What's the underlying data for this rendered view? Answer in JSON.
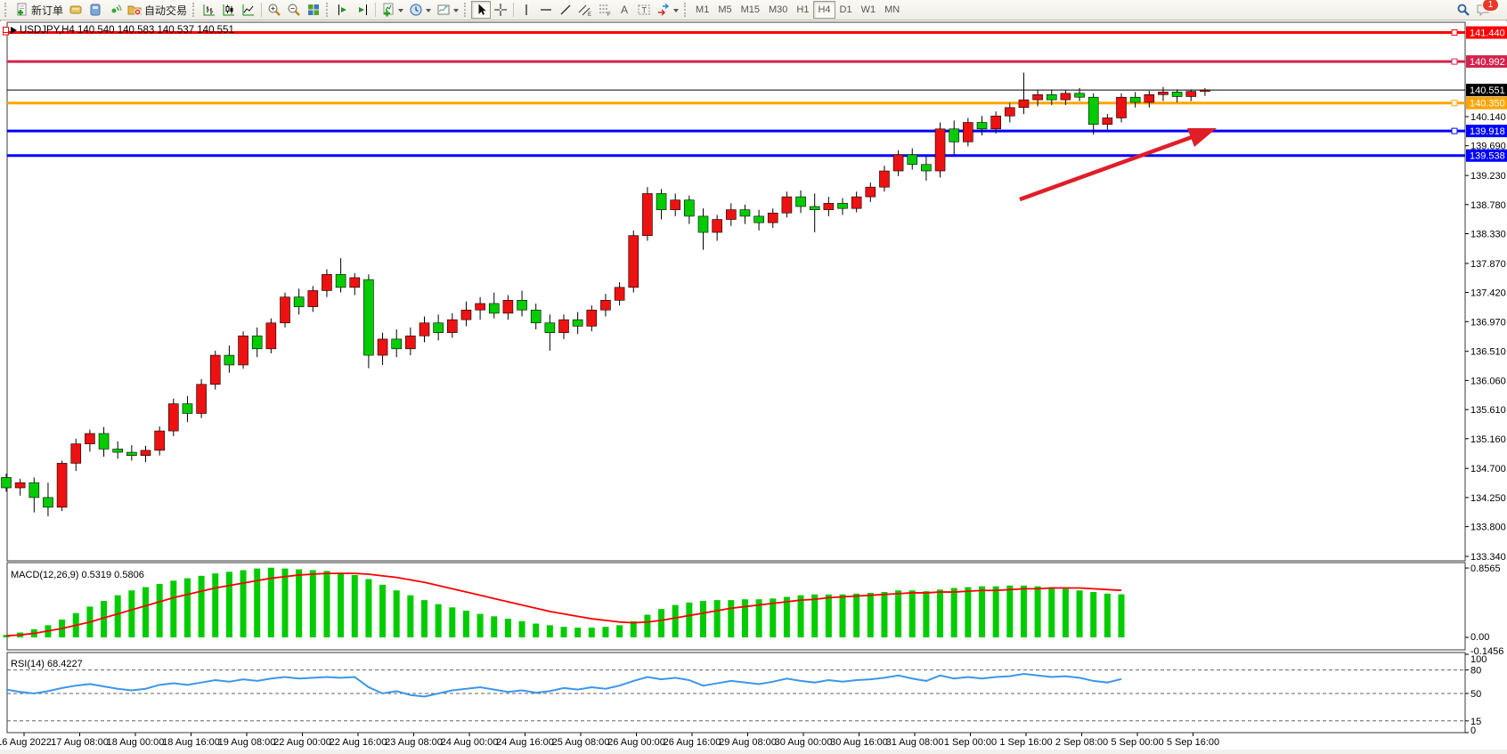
{
  "toolbar": {
    "new_order_label": "新订单",
    "auto_trading_label": "自动交易",
    "timeframes": [
      "M1",
      "M5",
      "M15",
      "M30",
      "H1",
      "H4",
      "D1",
      "W1",
      "MN"
    ],
    "active_timeframe": "H4",
    "notification_badge": "1",
    "icon_glyphs": {
      "text_tool": "A",
      "label_tool": "T",
      "channel_suffix": "E",
      "fibo_suffix": "F"
    },
    "icons": [
      "new-order",
      "profiles",
      "market-watch",
      "navigator",
      "auto-trading",
      "bar-chart",
      "candlestick-chart",
      "line-chart",
      "zoom-in",
      "zoom-out",
      "tile-windows",
      "auto-scroll",
      "chart-shift",
      "indicators",
      "periods",
      "templates",
      "cursor",
      "crosshair",
      "vertical-line",
      "horizontal-line",
      "trendline",
      "equidistant-channel",
      "fibonacci",
      "text",
      "text-label",
      "arrows",
      "search",
      "chat"
    ]
  },
  "chart": {
    "title": "USDJPY,H4 140.540 140.583 140.537 140.551",
    "symbol": "USDJPY",
    "period": "H4",
    "open": "140.540",
    "high": "140.583",
    "low": "140.537",
    "close": "140.551"
  },
  "price_axis": {
    "ticks": [
      "140.140",
      "139.690",
      "139.230",
      "138.780",
      "138.330",
      "137.870",
      "137.420",
      "136.970",
      "136.510",
      "136.060",
      "135.610",
      "135.160",
      "134.700",
      "134.250",
      "133.800",
      "133.340"
    ],
    "tick_values": [
      140.14,
      139.69,
      139.23,
      138.78,
      138.33,
      137.87,
      137.42,
      136.97,
      136.51,
      136.06,
      135.61,
      135.16,
      134.7,
      134.25,
      133.8,
      133.34
    ],
    "levels": [
      {
        "price": "141.440",
        "value": 141.44,
        "color": "#FF0000",
        "thick": true,
        "handle": true,
        "left_marker": true
      },
      {
        "price": "140.992",
        "value": 140.992,
        "color": "#D2234F",
        "thick": true,
        "handle": true,
        "left_marker": false
      },
      {
        "price": "140.551",
        "value": 140.551,
        "color": "#000000",
        "thick": false,
        "handle": false,
        "left_marker": false
      },
      {
        "price": "140.350",
        "value": 140.35,
        "color": "#FFA500",
        "thick": true,
        "handle": true,
        "left_marker": false
      },
      {
        "price": "139.918",
        "value": 139.918,
        "color": "#0000FF",
        "thick": true,
        "handle": true,
        "left_marker": false
      },
      {
        "price": "139.538",
        "value": 139.538,
        "color": "#0000FF",
        "thick": true,
        "handle": false,
        "left_marker": false
      }
    ]
  },
  "chart_data": {
    "type": "candlestick",
    "symbol": "USDJPY",
    "timeframe": "H4",
    "up_color": "#EE1111",
    "down_color": "#00CC00",
    "wick_color": "#000000",
    "price_range": [
      133.27,
      141.53
    ],
    "x_labels": [
      "16 Aug 2022",
      "17 Aug 08:00",
      "18 Aug 00:00",
      "18 Aug 16:00",
      "19 Aug 08:00",
      "22 Aug 00:00",
      "22 Aug 16:00",
      "23 Aug 08:00",
      "24 Aug 00:00",
      "24 Aug 16:00",
      "25 Aug 08:00",
      "26 Aug 00:00",
      "26 Aug 16:00",
      "29 Aug 08:00",
      "30 Aug 00:00",
      "30 Aug 16:00",
      "31 Aug 08:00",
      "1 Sep 00:00",
      "1 Sep 16:00",
      "2 Sep 08:00",
      "5 Sep 00:00",
      "5 Sep 16:00"
    ],
    "candles": [
      [
        134.56,
        134.62,
        134.34,
        134.4
      ],
      [
        134.4,
        134.54,
        134.28,
        134.48
      ],
      [
        134.48,
        134.56,
        134.02,
        134.25
      ],
      [
        134.25,
        134.48,
        133.96,
        134.1
      ],
      [
        134.1,
        134.82,
        134.04,
        134.78
      ],
      [
        134.78,
        135.16,
        134.66,
        135.08
      ],
      [
        135.08,
        135.3,
        134.96,
        135.24
      ],
      [
        135.24,
        135.34,
        134.88,
        135.0
      ],
      [
        135.0,
        135.12,
        134.85,
        134.95
      ],
      [
        134.95,
        135.06,
        134.82,
        134.9
      ],
      [
        134.9,
        135.05,
        134.8,
        134.98
      ],
      [
        134.98,
        135.35,
        134.9,
        135.28
      ],
      [
        135.28,
        135.78,
        135.2,
        135.7
      ],
      [
        135.7,
        135.82,
        135.42,
        135.55
      ],
      [
        135.55,
        136.08,
        135.48,
        136.0
      ],
      [
        136.0,
        136.52,
        135.92,
        136.45
      ],
      [
        136.45,
        136.6,
        136.18,
        136.3
      ],
      [
        136.3,
        136.82,
        136.24,
        136.75
      ],
      [
        136.75,
        136.88,
        136.42,
        136.55
      ],
      [
        136.55,
        137.02,
        136.48,
        136.95
      ],
      [
        136.95,
        137.42,
        136.88,
        137.35
      ],
      [
        137.35,
        137.48,
        137.08,
        137.2
      ],
      [
        137.2,
        137.52,
        137.12,
        137.45
      ],
      [
        137.45,
        137.78,
        137.35,
        137.7
      ],
      [
        137.7,
        137.95,
        137.42,
        137.5
      ],
      [
        137.5,
        137.72,
        137.38,
        137.65
      ],
      [
        137.62,
        137.7,
        136.25,
        136.45
      ],
      [
        136.45,
        136.8,
        136.3,
        136.7
      ],
      [
        136.7,
        136.85,
        136.42,
        136.55
      ],
      [
        136.55,
        136.88,
        136.45,
        136.75
      ],
      [
        136.75,
        137.05,
        136.65,
        136.95
      ],
      [
        136.95,
        137.08,
        136.68,
        136.8
      ],
      [
        136.8,
        137.1,
        136.72,
        137.0
      ],
      [
        137.0,
        137.28,
        136.9,
        137.15
      ],
      [
        137.15,
        137.35,
        137.0,
        137.25
      ],
      [
        137.25,
        137.42,
        137.02,
        137.1
      ],
      [
        137.1,
        137.38,
        137.0,
        137.3
      ],
      [
        137.3,
        137.45,
        137.05,
        137.15
      ],
      [
        137.15,
        137.25,
        136.85,
        136.95
      ],
      [
        136.95,
        137.08,
        136.52,
        136.8
      ],
      [
        136.8,
        137.08,
        136.7,
        137.0
      ],
      [
        137.0,
        137.12,
        136.78,
        136.9
      ],
      [
        136.9,
        137.22,
        136.82,
        137.15
      ],
      [
        137.15,
        137.4,
        137.05,
        137.3
      ],
      [
        137.3,
        137.58,
        137.22,
        137.5
      ],
      [
        137.5,
        138.38,
        137.42,
        138.3
      ],
      [
        138.3,
        139.05,
        138.22,
        138.95
      ],
      [
        138.95,
        139.02,
        138.55,
        138.7
      ],
      [
        138.7,
        138.95,
        138.6,
        138.85
      ],
      [
        138.85,
        138.92,
        138.48,
        138.6
      ],
      [
        138.6,
        138.72,
        138.08,
        138.35
      ],
      [
        138.35,
        138.62,
        138.22,
        138.55
      ],
      [
        138.55,
        138.8,
        138.45,
        138.7
      ],
      [
        138.7,
        138.78,
        138.48,
        138.6
      ],
      [
        138.6,
        138.7,
        138.38,
        138.5
      ],
      [
        138.5,
        138.72,
        138.42,
        138.65
      ],
      [
        138.65,
        138.98,
        138.58,
        138.9
      ],
      [
        138.9,
        139.0,
        138.65,
        138.75
      ],
      [
        138.75,
        138.95,
        138.35,
        138.7
      ],
      [
        138.7,
        138.9,
        138.6,
        138.8
      ],
      [
        138.8,
        138.88,
        138.62,
        138.72
      ],
      [
        138.72,
        138.98,
        138.66,
        138.9
      ],
      [
        138.9,
        139.12,
        138.82,
        139.05
      ],
      [
        139.05,
        139.38,
        138.98,
        139.3
      ],
      [
        139.3,
        139.62,
        139.22,
        139.55
      ],
      [
        139.55,
        139.65,
        139.32,
        139.4
      ],
      [
        139.4,
        139.52,
        139.15,
        139.3
      ],
      [
        139.3,
        140.05,
        139.2,
        139.95
      ],
      [
        139.95,
        140.08,
        139.55,
        139.75
      ],
      [
        139.75,
        140.12,
        139.68,
        140.05
      ],
      [
        140.05,
        140.15,
        139.85,
        139.95
      ],
      [
        139.95,
        140.22,
        139.88,
        140.15
      ],
      [
        140.15,
        140.35,
        140.05,
        140.28
      ],
      [
        140.28,
        140.82,
        140.18,
        140.4
      ],
      [
        140.4,
        140.55,
        140.3,
        140.48
      ],
      [
        140.48,
        140.56,
        140.32,
        140.4
      ],
      [
        140.4,
        140.55,
        140.32,
        140.5
      ],
      [
        140.5,
        140.58,
        140.38,
        140.44
      ],
      [
        140.44,
        140.5,
        139.86,
        140.02
      ],
      [
        140.02,
        140.18,
        139.94,
        140.12
      ],
      [
        140.12,
        140.5,
        140.05,
        140.44
      ],
      [
        140.44,
        140.52,
        140.28,
        140.36
      ],
      [
        140.36,
        140.54,
        140.28,
        140.48
      ],
      [
        140.48,
        140.6,
        140.38,
        140.52
      ],
      [
        140.52,
        140.56,
        140.36,
        140.45
      ],
      [
        140.45,
        140.56,
        140.38,
        140.53
      ],
      [
        140.53,
        140.58,
        140.46,
        140.551
      ]
    ],
    "indicators": [
      {
        "name": "MACD",
        "params": "12,26,9",
        "label": "MACD(12,26,9) 0.5319 0.5806",
        "macd_value": 0.5319,
        "signal_value": 0.5806,
        "axis_labels": [
          "0.8565",
          "0.00",
          "-0.1456"
        ],
        "range": [
          -0.1456,
          0.8565
        ],
        "histogram_color": "#00CC00",
        "signal_color": "#FF0000",
        "histogram": [
          0.03,
          0.06,
          0.1,
          0.15,
          0.22,
          0.3,
          0.38,
          0.45,
          0.52,
          0.58,
          0.62,
          0.66,
          0.7,
          0.73,
          0.76,
          0.79,
          0.81,
          0.83,
          0.85,
          0.86,
          0.85,
          0.84,
          0.83,
          0.82,
          0.8,
          0.77,
          0.72,
          0.65,
          0.58,
          0.52,
          0.46,
          0.41,
          0.37,
          0.33,
          0.29,
          0.26,
          0.23,
          0.2,
          0.17,
          0.15,
          0.13,
          0.12,
          0.12,
          0.13,
          0.15,
          0.2,
          0.28,
          0.35,
          0.4,
          0.43,
          0.45,
          0.46,
          0.46,
          0.47,
          0.47,
          0.48,
          0.5,
          0.52,
          0.53,
          0.53,
          0.53,
          0.54,
          0.55,
          0.56,
          0.58,
          0.58,
          0.57,
          0.59,
          0.61,
          0.62,
          0.63,
          0.63,
          0.64,
          0.64,
          0.63,
          0.62,
          0.6,
          0.58,
          0.56,
          0.54,
          0.5319
        ],
        "signal": [
          0.02,
          0.03,
          0.05,
          0.08,
          0.11,
          0.15,
          0.19,
          0.24,
          0.29,
          0.34,
          0.39,
          0.44,
          0.49,
          0.53,
          0.57,
          0.61,
          0.64,
          0.67,
          0.7,
          0.73,
          0.75,
          0.77,
          0.78,
          0.79,
          0.79,
          0.79,
          0.78,
          0.76,
          0.74,
          0.71,
          0.68,
          0.64,
          0.6,
          0.56,
          0.52,
          0.48,
          0.44,
          0.4,
          0.36,
          0.32,
          0.29,
          0.26,
          0.23,
          0.21,
          0.19,
          0.18,
          0.19,
          0.21,
          0.24,
          0.27,
          0.3,
          0.33,
          0.36,
          0.38,
          0.4,
          0.42,
          0.44,
          0.46,
          0.47,
          0.49,
          0.5,
          0.51,
          0.52,
          0.53,
          0.54,
          0.55,
          0.55,
          0.56,
          0.56,
          0.57,
          0.58,
          0.58,
          0.59,
          0.6,
          0.6,
          0.61,
          0.61,
          0.61,
          0.6,
          0.59,
          0.5806
        ]
      },
      {
        "name": "RSI",
        "params": "14",
        "label": "RSI(14) 68.4227",
        "value": 68.4227,
        "axis_labels": [
          "100",
          "80",
          "50",
          "15",
          "0"
        ],
        "levels": [
          80,
          50,
          15
        ],
        "range": [
          0,
          100
        ],
        "line_color": "#3C96E8",
        "level_line_color": "#666666",
        "values": [
          55,
          52,
          50,
          53,
          57,
          60,
          62,
          59,
          56,
          54,
          56,
          61,
          63,
          61,
          64,
          67,
          65,
          68,
          66,
          69,
          71,
          69,
          70,
          71,
          70,
          71,
          58,
          50,
          53,
          48,
          46,
          50,
          54,
          56,
          58,
          55,
          52,
          54,
          51,
          53,
          57,
          55,
          58,
          56,
          60,
          66,
          71,
          68,
          70,
          67,
          60,
          63,
          66,
          64,
          62,
          65,
          69,
          66,
          64,
          67,
          65,
          67,
          68,
          70,
          73,
          69,
          66,
          73,
          69,
          71,
          69,
          71,
          72,
          75,
          73,
          71,
          72,
          70,
          66,
          64,
          68.4227
        ]
      }
    ],
    "annotation_arrow": {
      "color": "#E01E28",
      "description": "red up-trend arrow"
    }
  }
}
